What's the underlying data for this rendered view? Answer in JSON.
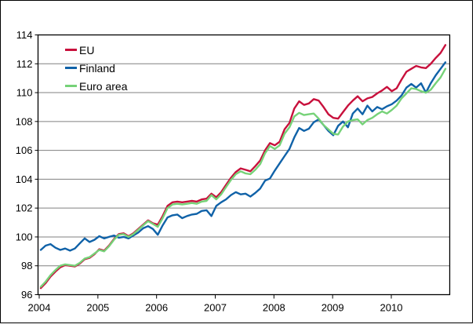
{
  "chart_data": {
    "type": "line",
    "title": "",
    "x": {
      "unit": "month",
      "start": "2004-01",
      "end": "2010-12",
      "tick_labels": [
        "2004",
        "2005",
        "2006",
        "2007",
        "2008",
        "2009",
        "2010"
      ]
    },
    "y": {
      "min": 96,
      "max": 114,
      "tick_step": 2,
      "tick_labels": [
        "96",
        "98",
        "100",
        "102",
        "104",
        "106",
        "108",
        "110",
        "112",
        "114"
      ]
    },
    "grid": true,
    "legend_position": "top-left",
    "series": [
      {
        "name": "EU",
        "color": "#C8103C",
        "values": [
          96.45,
          96.8,
          97.25,
          97.6,
          97.9,
          98.05,
          98.0,
          97.95,
          98.15,
          98.45,
          98.55,
          98.8,
          99.15,
          99.05,
          99.4,
          99.85,
          100.2,
          100.25,
          100.05,
          100.25,
          100.55,
          100.85,
          101.15,
          100.95,
          100.85,
          101.45,
          102.15,
          102.4,
          102.45,
          102.4,
          102.45,
          102.5,
          102.45,
          102.6,
          102.65,
          103.0,
          102.75,
          103.1,
          103.6,
          104.1,
          104.5,
          104.75,
          104.65,
          104.55,
          104.9,
          105.3,
          106.0,
          106.5,
          106.35,
          106.6,
          107.45,
          107.9,
          108.9,
          109.4,
          109.15,
          109.25,
          109.55,
          109.45,
          109.0,
          108.5,
          108.25,
          108.2,
          108.65,
          109.1,
          109.45,
          109.75,
          109.4,
          109.6,
          109.7,
          109.95,
          110.15,
          110.4,
          110.1,
          110.3,
          110.9,
          111.45,
          111.65,
          111.85,
          111.75,
          111.7,
          112.0,
          112.4,
          112.75,
          113.3
        ]
      },
      {
        "name": "Finland",
        "color": "#1062A8",
        "values": [
          99.1,
          99.4,
          99.5,
          99.25,
          99.1,
          99.2,
          99.05,
          99.2,
          99.55,
          99.9,
          99.65,
          99.8,
          100.05,
          99.9,
          100.0,
          100.1,
          99.95,
          100.0,
          99.9,
          100.1,
          100.3,
          100.6,
          100.75,
          100.55,
          100.15,
          100.8,
          101.35,
          101.5,
          101.55,
          101.3,
          101.45,
          101.55,
          101.6,
          101.8,
          101.85,
          101.45,
          102.15,
          102.4,
          102.6,
          102.9,
          103.1,
          102.95,
          103.0,
          102.8,
          103.05,
          103.35,
          103.9,
          104.05,
          104.6,
          105.1,
          105.6,
          106.1,
          106.9,
          107.55,
          107.35,
          107.5,
          107.95,
          108.15,
          107.75,
          107.35,
          107.05,
          107.7,
          108.0,
          107.6,
          108.55,
          108.9,
          108.5,
          109.1,
          108.7,
          109.0,
          108.85,
          109.05,
          109.2,
          109.45,
          109.8,
          110.35,
          110.6,
          110.35,
          110.65,
          110.0,
          110.65,
          111.2,
          111.65,
          112.1
        ]
      },
      {
        "name": "Euro area",
        "color": "#76D278",
        "values": [
          96.55,
          96.9,
          97.35,
          97.7,
          98.0,
          98.1,
          98.05,
          98.0,
          98.2,
          98.5,
          98.6,
          98.85,
          99.1,
          99.0,
          99.35,
          99.8,
          100.15,
          100.2,
          100.0,
          100.2,
          100.5,
          100.8,
          101.1,
          100.9,
          100.7,
          101.3,
          102.0,
          102.25,
          102.3,
          102.25,
          102.3,
          102.35,
          102.3,
          102.45,
          102.5,
          102.9,
          102.6,
          102.95,
          103.45,
          103.95,
          104.35,
          104.55,
          104.4,
          104.35,
          104.65,
          105.05,
          105.8,
          106.3,
          106.1,
          106.35,
          107.15,
          107.6,
          108.35,
          108.6,
          108.45,
          108.5,
          108.55,
          108.2,
          107.75,
          107.45,
          107.15,
          107.1,
          107.65,
          108.0,
          108.1,
          108.15,
          107.8,
          108.1,
          108.25,
          108.5,
          108.7,
          108.55,
          108.8,
          109.1,
          109.6,
          109.95,
          110.3,
          110.25,
          110.1,
          110.0,
          110.2,
          110.65,
          111.05,
          111.65
        ]
      }
    ]
  },
  "colors": {
    "gridline": "#808080",
    "axis": "#000000",
    "background": "#FFFFFF",
    "text": "#000000"
  }
}
